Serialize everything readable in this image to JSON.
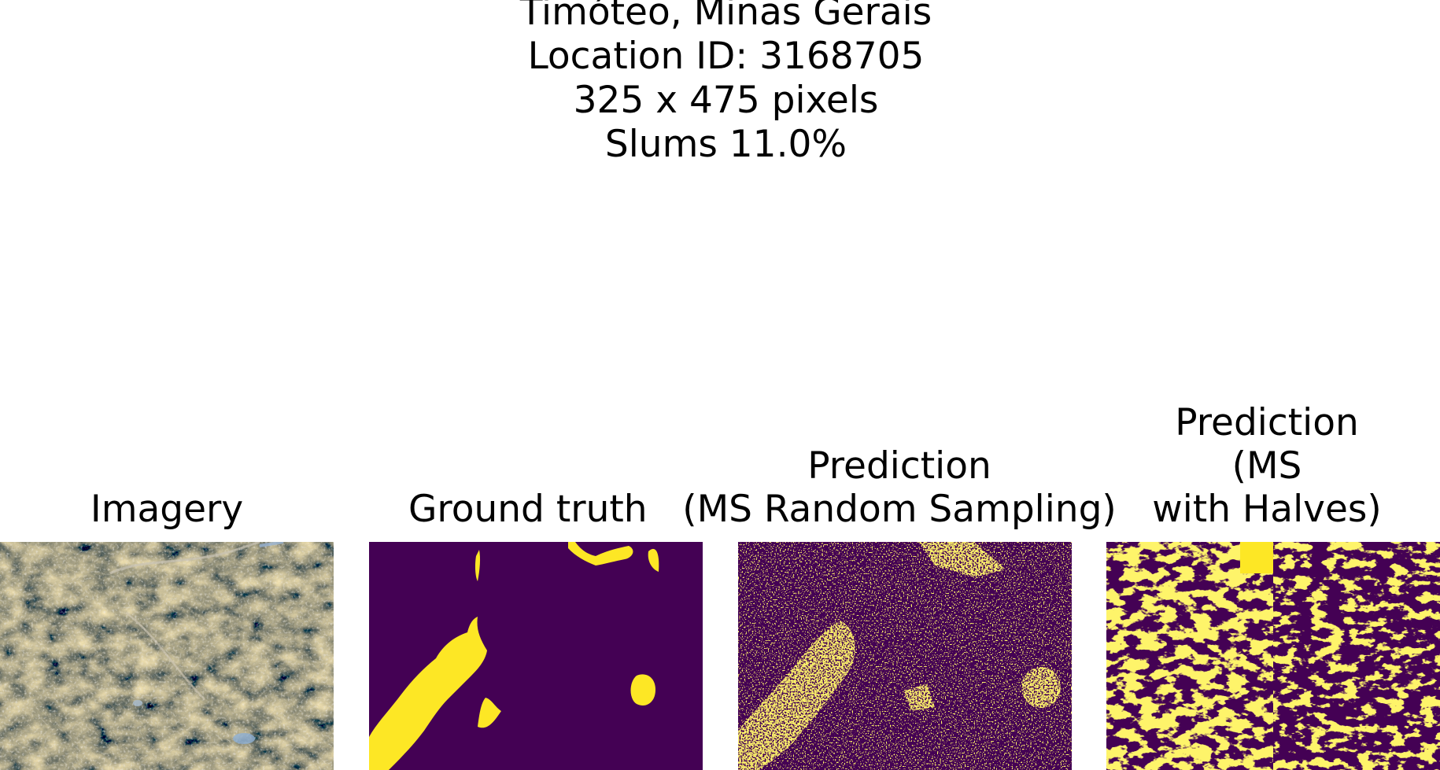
{
  "figure": {
    "header": {
      "line1": "Timóteo, Minas Gerais",
      "line2": "Location ID: 3168705",
      "line3": "325 x 475 pixels",
      "line4": "Slums 11.0%"
    },
    "panels": [
      {
        "title": "Imagery"
      },
      {
        "title": "Ground truth"
      },
      {
        "title_line1": "Prediction",
        "title_line2": "(MS Random Sampling)"
      },
      {
        "title_line1": "Prediction",
        "title_line2": "(MS",
        "title_line3": "with Halves)"
      }
    ]
  },
  "colors": {
    "mask_background": "#440154",
    "mask_foreground": "#fde725",
    "imagery_dark": "#2f3a1c",
    "imagery_light": "#b4925c"
  }
}
